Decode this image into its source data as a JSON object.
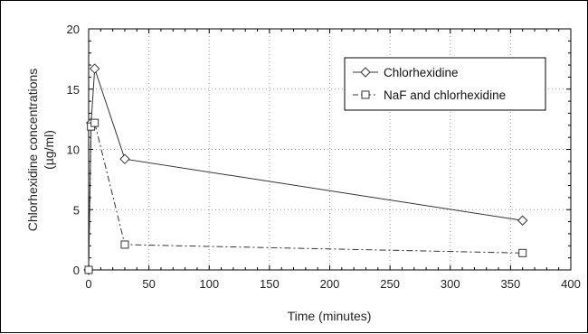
{
  "chart_data": {
    "type": "line",
    "title": "",
    "xlabel": "Time (minutes)",
    "ylabel_lines": [
      "Chlorhexidine concentrations",
      "(µg/ml)"
    ],
    "xlim": [
      0,
      400
    ],
    "ylim": [
      0,
      20
    ],
    "x_ticks": [
      0,
      50,
      100,
      150,
      200,
      250,
      300,
      350,
      400
    ],
    "y_ticks": [
      0,
      5,
      10,
      15,
      20
    ],
    "grid": true,
    "legend_position": "top-right",
    "series": [
      {
        "name": "Chlorhexidine",
        "marker": "diamond",
        "line_style": "solid",
        "color": "#333333",
        "x": [
          0,
          2,
          5,
          30,
          360
        ],
        "y": [
          0,
          12.2,
          16.7,
          9.2,
          4.1
        ]
      },
      {
        "name": "NaF and chlorhexidine",
        "marker": "square",
        "line_style": "dash-dot",
        "color": "#333333",
        "x": [
          0,
          2,
          5,
          30,
          360
        ],
        "y": [
          0,
          11.9,
          12.2,
          2.1,
          1.4
        ]
      }
    ]
  }
}
